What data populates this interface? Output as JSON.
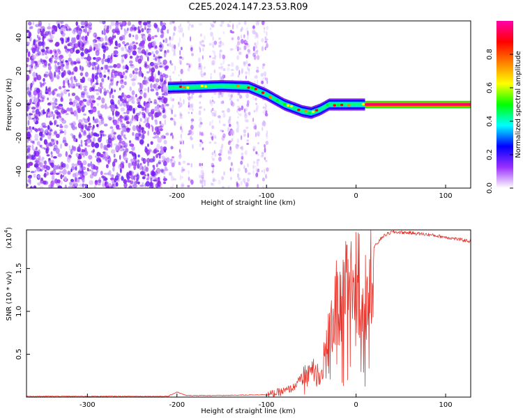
{
  "chart_data": [
    {
      "type": "heatmap",
      "title": "C2E5.2024.147.23.53.R09",
      "xlabel": "Height of straight line (km)",
      "ylabel": "Frequency (Hz)",
      "xlim": [
        -368,
        128
      ],
      "ylim": [
        -50,
        50
      ],
      "xticks": [
        -300,
        -200,
        -100,
        0,
        100
      ],
      "xtick_labels": [
        "-300",
        "-200",
        "-100",
        "0",
        "100"
      ],
      "yticks": [
        40,
        20,
        0,
        -20,
        -40
      ],
      "ytick_labels": [
        "40",
        "20",
        "0",
        "-20",
        "-40"
      ],
      "colorbar": {
        "label": "Normalized spectral amplitude",
        "range": [
          0,
          1
        ],
        "ticks": [
          0.0,
          0.2,
          0.4,
          0.6,
          0.8
        ],
        "tick_labels": [
          "0.0",
          "0.2",
          "0.4",
          "0.6",
          "0.8"
        ],
        "colormap": [
          "#ffffff",
          "#9b30ff",
          "#0000ff",
          "#00ffff",
          "#00ff00",
          "#ffff00",
          "#ff8000",
          "#ff0000",
          "#ff00aa"
        ]
      },
      "ridge": {
        "x": [
          -210,
          -180,
          -150,
          -120,
          -100,
          -80,
          -60,
          -50,
          -40,
          -30,
          -20,
          -10,
          0,
          10,
          128
        ],
        "y": [
          10,
          10.5,
          11,
          10.5,
          6,
          0,
          -4,
          -5,
          -3,
          0,
          0,
          0,
          0,
          0,
          0
        ]
      },
      "noise_region_x": [
        -368,
        -210
      ],
      "grid": false
    },
    {
      "type": "line",
      "xlabel": "Height of straight line (km)",
      "ylabel": "SNR (10 * v/v)",
      "yscale_label": "(x10",
      "yscale_exp": "4",
      "yscale_close": ")",
      "xlim": [
        -368,
        128
      ],
      "ylim": [
        0,
        1.95
      ],
      "xticks": [
        -300,
        -200,
        -100,
        0,
        100
      ],
      "xtick_labels": [
        "-300",
        "-200",
        "-100",
        "0",
        "100"
      ],
      "yticks": [
        0.5,
        1.0,
        1.5
      ],
      "ytick_labels": [
        "0.5",
        "1.0",
        "1.5"
      ],
      "color": "#e8332a",
      "envelope": {
        "x": [
          -368,
          -210,
          -200,
          -190,
          -150,
          -100,
          -80,
          -70,
          -60,
          -50,
          -40,
          -30,
          -25,
          -20,
          -10,
          0,
          10,
          20,
          30,
          40,
          60,
          80,
          100,
          128
        ],
        "y": [
          0.01,
          0.01,
          0.06,
          0.02,
          0.02,
          0.03,
          0.08,
          0.12,
          0.25,
          0.35,
          0.3,
          0.8,
          1.1,
          1.25,
          1.4,
          1.5,
          1.6,
          1.75,
          1.88,
          1.93,
          1.92,
          1.9,
          1.87,
          1.82
        ]
      },
      "grid": false
    }
  ]
}
